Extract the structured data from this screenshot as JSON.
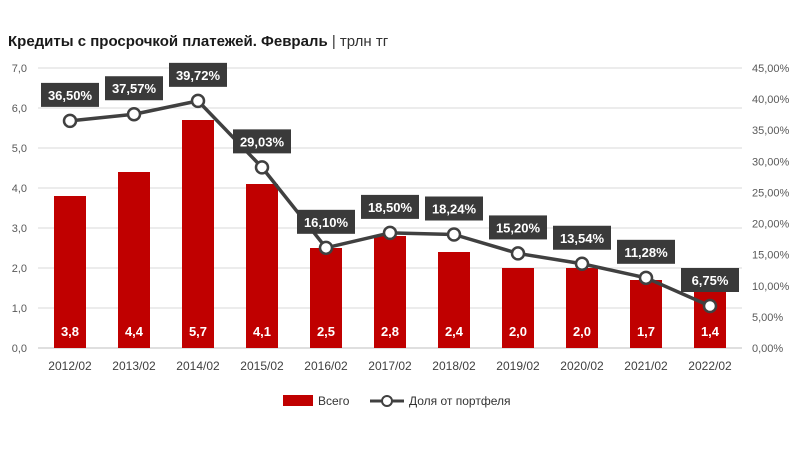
{
  "title": {
    "main": "Кредиты с просрочкой платежей. Февраль",
    "separator": "|",
    "unit": "трлн тг"
  },
  "colors": {
    "bar": "#c00000",
    "line": "#404040",
    "label_bg": "#3a3a3a",
    "grid": "#d9d9d9"
  },
  "chart_data": {
    "type": "bar",
    "categories": [
      "2012/02",
      "2013/02",
      "2014/02",
      "2015/02",
      "2016/02",
      "2017/02",
      "2018/02",
      "2019/02",
      "2020/02",
      "2021/02",
      "2022/02"
    ],
    "series": [
      {
        "name": "Всего",
        "type": "bar",
        "axis": "left",
        "values": [
          3.8,
          4.4,
          5.7,
          4.1,
          2.5,
          2.8,
          2.4,
          2.0,
          2.0,
          1.7,
          1.4
        ],
        "labels": [
          "3,8",
          "4,4",
          "5,7",
          "4,1",
          "2,5",
          "2,8",
          "2,4",
          "2,0",
          "2,0",
          "1,7",
          "1,4"
        ]
      },
      {
        "name": "Доля от портфеля",
        "type": "line",
        "axis": "right",
        "values": [
          36.5,
          37.57,
          39.72,
          29.03,
          16.1,
          18.5,
          18.24,
          15.2,
          13.54,
          11.28,
          6.75
        ],
        "labels": [
          "36,50%",
          "37,57%",
          "39,72%",
          "29,03%",
          "16,10%",
          "18,50%",
          "18,24%",
          "15,20%",
          "13,54%",
          "11,28%",
          "6,75%"
        ]
      }
    ],
    "y_left": {
      "ylim": [
        0,
        7
      ],
      "ticks": [
        "0,0",
        "1,0",
        "2,0",
        "3,0",
        "4,0",
        "5,0",
        "6,0",
        "7,0"
      ]
    },
    "y_right": {
      "ylim": [
        0,
        45
      ],
      "ticks": [
        "0,00%",
        "5,00%",
        "10,00%",
        "15,00%",
        "20,00%",
        "25,00%",
        "30,00%",
        "35,00%",
        "40,00%",
        "45,00%"
      ]
    },
    "grid": true,
    "legend_position": "bottom-center"
  }
}
